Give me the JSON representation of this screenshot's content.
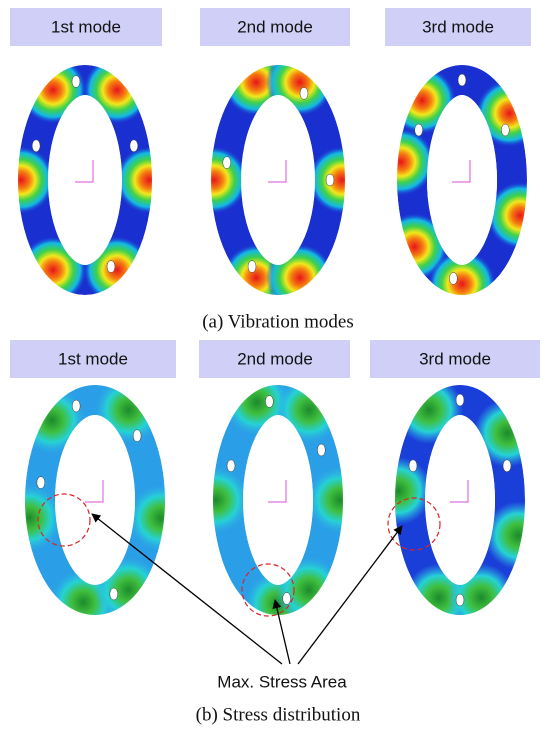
{
  "panel_a": {
    "labels": [
      "1st  mode",
      "2nd  mode",
      "3rd  mode"
    ],
    "caption": "(a)  Vibration  modes"
  },
  "panel_b": {
    "labels": [
      "1st  mode",
      "2nd  mode",
      "3rd  mode"
    ],
    "annotation": "Max.  Stress  Area",
    "caption": "(b)  Stress  distribution"
  }
}
